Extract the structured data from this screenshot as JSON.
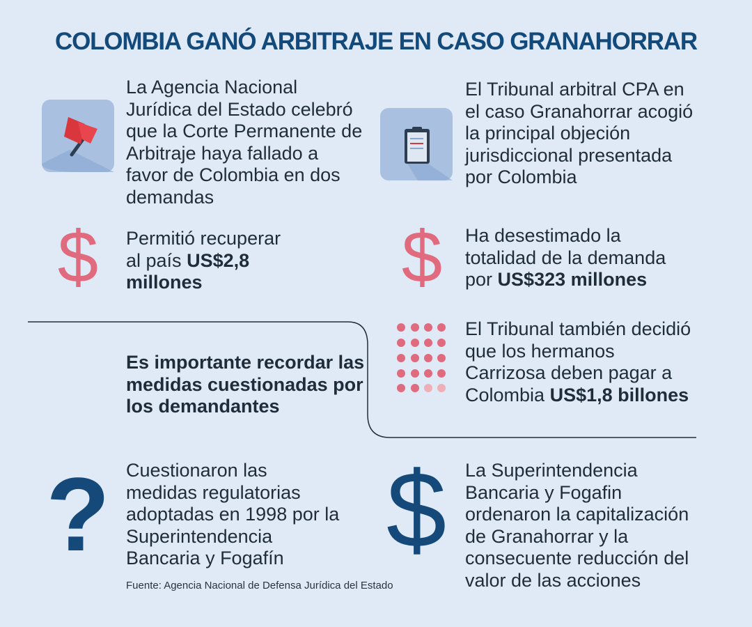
{
  "header": {
    "title": "COLOMBIA GANÓ ARBITRAJE EN CASO GRANAHORRAR"
  },
  "blocks": [
    {
      "text": "La Agencia Nacional Jurídica del Estado celebró que la Corte Permanente de Arbitraje haya fallado a favor de Colombia en dos demandas"
    },
    {
      "text": "El Tribunal arbitral CPA en el caso Granahorrar acogió la principal objeción jurisdiccional presentada por Colombia"
    },
    {
      "text": "Permitió recuperar al país",
      "bold": "US$2,8 millones"
    },
    {
      "text": "Ha desestimado la totalidad de la demanda por",
      "bold": "US$323 millones"
    },
    {
      "text": "El Tribunal también decidió que los hermanos Carrizosa deben pagar a Colombia",
      "bold": "US$1,8 billones"
    },
    {
      "bold": "Es importante recordar las medidas cuestionadas por los demandantes"
    },
    {
      "text": "Cuestionaron las medidas regulatorias adoptadas en 1998 por la Superintendencia Bancaria y Fogafín"
    },
    {
      "text": "La Superintendencia Bancaria y Fogafin ordenaron la capitalización de Granahorrar y la consecuente reducción del valor de las acciones"
    }
  ],
  "source": "Fuente: Agencia Nacional de Defensa Jurídica del Estado"
}
